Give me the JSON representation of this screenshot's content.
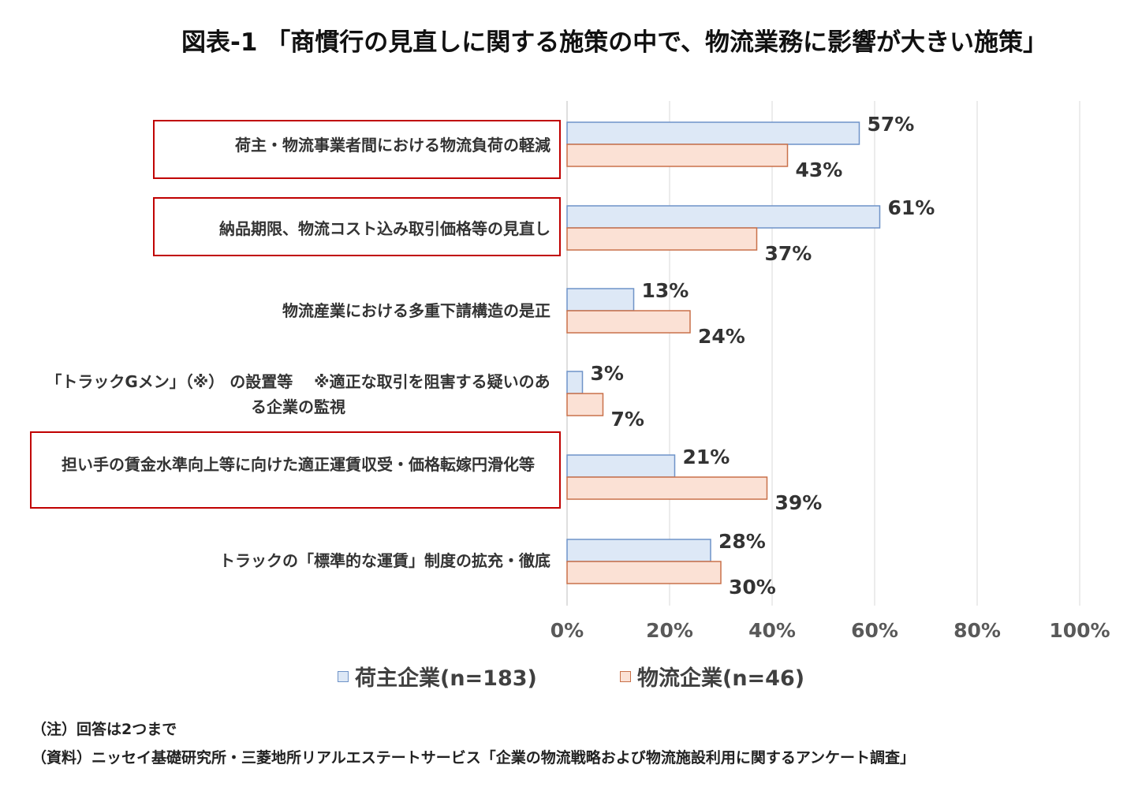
{
  "chart_data": {
    "type": "bar",
    "orientation": "horizontal",
    "title": "図表-1 「商慣行の見直しに関する施策の中で、物流業務に影響が大きい施策」",
    "categories": [
      "荷主・物流事業者間における物流負荷の軽減",
      "納品期限、物流コスト込み取引価格等の見直し",
      "物流産業における多重下請構造の是正",
      "「トラックGメン」（※） の設置等　 ※適正な取引を阻害する疑いのある企業の監視",
      "担い手の賃金水準向上等に向けた適正運賃収受・価格転嫁円滑化等",
      "トラックの「標準的な運賃」制度の拡充・徹底"
    ],
    "highlighted": [
      true,
      true,
      false,
      false,
      true,
      false
    ],
    "series": [
      {
        "name": "荷主企業(n=183)",
        "values": [
          57,
          61,
          13,
          3,
          21,
          28
        ],
        "labels": [
          "57%",
          "61%",
          "13%",
          "3%",
          "21%",
          "28%"
        ],
        "fill": "#dde8f6",
        "stroke": "#6f93c8"
      },
      {
        "name": "物流企業(n=46)",
        "values": [
          43,
          37,
          24,
          7,
          39,
          30
        ],
        "labels": [
          "43%",
          "37%",
          "24%",
          "7%",
          "39%",
          "30%"
        ],
        "fill": "#fbe1d5",
        "stroke": "#c9714a"
      }
    ],
    "xlim": [
      0,
      100
    ],
    "xticks": [
      0,
      20,
      40,
      60,
      80,
      100
    ],
    "xtick_labels": [
      "0%",
      "20%",
      "40%",
      "60%",
      "80%",
      "100%"
    ],
    "grid": true,
    "legend_position": "bottom"
  },
  "notes": {
    "note": "（注）回答は2つまで",
    "source": "（資料）ニッセイ基礎研究所・三菱地所リアルエステートサービス「企業の物流戦略および物流施設利用に関するアンケート調査」"
  },
  "colors": {
    "highlight_border": "#c00000",
    "gridline": "#d9d9d9"
  }
}
